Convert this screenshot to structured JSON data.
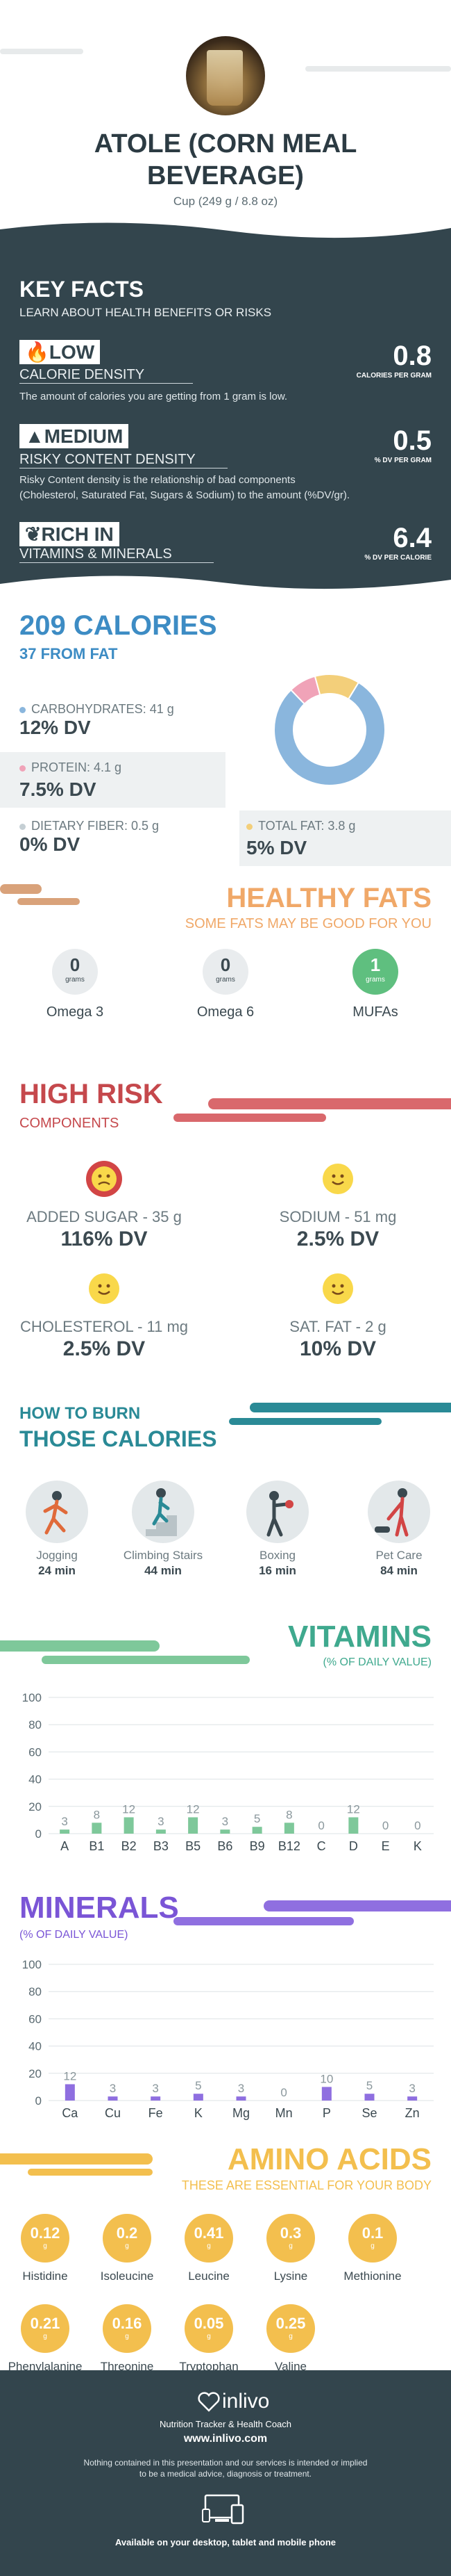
{
  "header": {
    "title_line1": "ATOLE (CORN MEAL",
    "title_line2": "BEVERAGE)",
    "serving": "Cup (249 g / 8.8 oz)"
  },
  "key_facts": {
    "title": "KEY FACTS",
    "subtitle": "LEARN ABOUT HEALTH BENEFITS OR RISKS",
    "calorie_density": {
      "level": "LOW",
      "label": "CALORIE DENSITY",
      "value": "0.8",
      "unit": "CALORIES PER GRAM",
      "desc": "The amount of calories you are getting from 1 gram is low."
    },
    "risky_content": {
      "level": "MEDIUM",
      "label": "RISKY CONTENT DENSITY",
      "value": "0.5",
      "unit": "% DV PER GRAM",
      "desc1": "Risky Content density is the relationship of bad components",
      "desc2": "(Cholesterol, Saturated Fat, Sugars & Sodium) to the amount (%DV/gr)."
    },
    "rich": {
      "level": "RICH  IN",
      "label": "VITAMINS & MINERALS",
      "value": "6.4",
      "unit": "% DV PER CALORIE"
    }
  },
  "calories": {
    "title": "209 CALORIES",
    "from_fat": "37 FROM FAT",
    "carbs": {
      "label": "CARBOHYDRATES: 41 g",
      "dv": "12% DV"
    },
    "protein": {
      "label": "PROTEIN: 4.1 g",
      "dv": "7.5% DV"
    },
    "fiber": {
      "label": "DIETARY FIBER: 0.5 g",
      "dv": "0% DV"
    },
    "fat": {
      "label": "TOTAL FAT: 3.8 g",
      "dv": "5% DV"
    },
    "colors": {
      "carbs": "#8ab6dd",
      "protein": "#f0a3b8",
      "fiber": "#c5cfd4",
      "fat": "#f3cf7a"
    }
  },
  "healthy_fats": {
    "title": "HEALTHY FATS",
    "subtitle": "SOME FATS MAY BE GOOD FOR YOU",
    "unit": "grams",
    "items": [
      {
        "name": "Omega 3",
        "value": "0"
      },
      {
        "name": "Omega 6",
        "value": "0"
      },
      {
        "name": "MUFAs",
        "value": "1"
      }
    ]
  },
  "high_risk": {
    "title": "HIGH RISK",
    "subtitle": "COMPONENTS",
    "items": [
      {
        "name": "ADDED SUGAR - 35 g",
        "dv": "116% DV"
      },
      {
        "name": "SODIUM - 51 mg",
        "dv": "2.5% DV"
      },
      {
        "name": "CHOLESTEROL - 11 mg",
        "dv": "2.5% DV"
      },
      {
        "name": "SAT. FAT - 2 g",
        "dv": "10% DV"
      }
    ]
  },
  "burn": {
    "title1": "HOW TO BURN",
    "title2": "THOSE CALORIES",
    "items": [
      {
        "name": "Jogging",
        "time": "24 min"
      },
      {
        "name": "Climbing Stairs",
        "time": "44 min"
      },
      {
        "name": "Boxing",
        "time": "16 min"
      },
      {
        "name": "Pet Care",
        "time": "84 min"
      }
    ]
  },
  "chart_data": [
    {
      "type": "bar",
      "title": "VITAMINS",
      "subtitle": "(% OF DAILY VALUE)",
      "categories": [
        "A",
        "B1",
        "B2",
        "B3",
        "B5",
        "B6",
        "B9",
        "B12",
        "C",
        "D",
        "E",
        "K"
      ],
      "values": [
        3,
        8,
        12,
        3,
        12,
        3,
        5,
        8,
        0,
        12,
        0,
        0
      ],
      "ylim": [
        0,
        100
      ],
      "yticks": [
        "0",
        "20",
        "40",
        "60",
        "80",
        "100"
      ],
      "grid": true,
      "color": "#7ec89a"
    },
    {
      "type": "bar",
      "title": "MINERALS",
      "subtitle": "(% OF DAILY VALUE)",
      "categories": [
        "Ca",
        "Cu",
        "Fe",
        "K",
        "Mg",
        "Mn",
        "P",
        "Se",
        "Zn"
      ],
      "values": [
        12,
        3,
        3,
        5,
        3,
        0,
        10,
        5,
        3
      ],
      "ylim": [
        0,
        100
      ],
      "yticks": [
        "0",
        "20",
        "40",
        "60",
        "80",
        "100"
      ],
      "grid": true,
      "color": "#8f6fe0"
    }
  ],
  "amino": {
    "title": "AMINO ACIDS",
    "subtitle": "THESE ARE ESSENTIAL FOR YOUR BODY",
    "unit": "g",
    "items": [
      {
        "name": "Histidine",
        "value": "0.12"
      },
      {
        "name": "Isoleucine",
        "value": "0.2"
      },
      {
        "name": "Leucine",
        "value": "0.41"
      },
      {
        "name": "Lysine",
        "value": "0.3"
      },
      {
        "name": "Methionine",
        "value": "0.1"
      },
      {
        "name": "Phenylalanine",
        "value": "0.21"
      },
      {
        "name": "Threonine",
        "value": "0.16"
      },
      {
        "name": "Tryptophan",
        "value": "0.05"
      },
      {
        "name": "Valine",
        "value": "0.25"
      }
    ]
  },
  "footer": {
    "brand": "inlivo",
    "tagline": "Nutrition Tracker & Health Coach",
    "url": "www.inlivo.com",
    "disclaimer1": "Nothing contained in this presentation and our services is intended or implied",
    "disclaimer2": "to be a medical advice, diagnosis or treatment.",
    "devices": "Available on your desktop, tablet and mobile phone"
  }
}
